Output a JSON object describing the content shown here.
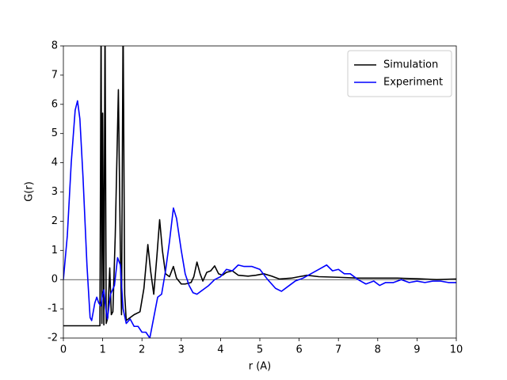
{
  "chart_data": {
    "type": "line",
    "xlabel": "r (A)",
    "ylabel": "G(r)",
    "xlim": [
      0,
      10
    ],
    "ylim": [
      -2,
      8
    ],
    "xticks": [
      0,
      1,
      2,
      3,
      4,
      5,
      6,
      7,
      8,
      9,
      10
    ],
    "yticks": [
      -2,
      -1,
      0,
      1,
      2,
      3,
      4,
      5,
      6,
      7,
      8
    ],
    "hline": 0,
    "legend": "upper right",
    "series": [
      {
        "name": "Simulation",
        "color": "#000000",
        "x": [
          0,
          0.9,
          0.93,
          0.96,
          0.98,
          1.0,
          1.03,
          1.06,
          1.09,
          1.13,
          1.18,
          1.22,
          1.26,
          1.32,
          1.4,
          1.45,
          1.48,
          1.52,
          1.56,
          1.6,
          1.7,
          1.8,
          1.95,
          2.05,
          2.15,
          2.22,
          2.3,
          2.38,
          2.45,
          2.52,
          2.6,
          2.7,
          2.8,
          2.88,
          3.0,
          3.1,
          3.25,
          3.32,
          3.4,
          3.48,
          3.55,
          3.65,
          3.75,
          3.85,
          3.95,
          4.05,
          4.15,
          4.3,
          4.45,
          4.7,
          4.9,
          5.1,
          5.3,
          5.5,
          5.8,
          6.0,
          6.2,
          6.5,
          7.0,
          7.5,
          8.0,
          8.5,
          9.0,
          9.5,
          10.0
        ],
        "values": [
          -1.58,
          -1.58,
          -1.58,
          9,
          -1.5,
          5.7,
          -1.55,
          9,
          -1.5,
          -1.3,
          0.4,
          -1.2,
          -1.1,
          1.5,
          6.5,
          1.0,
          -1.2,
          9,
          -0.5,
          -1.4,
          -1.3,
          -1.2,
          -1.1,
          -0.3,
          1.2,
          0.3,
          -0.5,
          0.8,
          2.05,
          1.0,
          0.2,
          0.1,
          0.45,
          0.05,
          -0.15,
          -0.15,
          -0.1,
          0.1,
          0.6,
          0.2,
          -0.05,
          0.25,
          0.3,
          0.47,
          0.2,
          0.15,
          0.25,
          0.3,
          0.15,
          0.12,
          0.15,
          0.2,
          0.12,
          0.02,
          0.05,
          0.1,
          0.15,
          0.1,
          0.08,
          0.05,
          0.05,
          0.05,
          0.03,
          0.0,
          0.02
        ]
      },
      {
        "name": "Experiment",
        "color": "#0000ff",
        "x": [
          0,
          0.1,
          0.2,
          0.3,
          0.36,
          0.42,
          0.5,
          0.6,
          0.68,
          0.72,
          0.8,
          0.85,
          0.9,
          0.95,
          1.0,
          1.03,
          1.08,
          1.12,
          1.2,
          1.3,
          1.38,
          1.45,
          1.52,
          1.6,
          1.7,
          1.8,
          1.9,
          2.0,
          2.1,
          2.2,
          2.3,
          2.4,
          2.5,
          2.6,
          2.7,
          2.8,
          2.88,
          3.0,
          3.1,
          3.2,
          3.3,
          3.4,
          3.55,
          3.7,
          3.85,
          4.0,
          4.15,
          4.3,
          4.45,
          4.6,
          4.8,
          5.0,
          5.2,
          5.4,
          5.55,
          5.7,
          5.9,
          6.1,
          6.3,
          6.5,
          6.7,
          6.85,
          7.0,
          7.15,
          7.3,
          7.5,
          7.7,
          7.9,
          8.05,
          8.2,
          8.4,
          8.6,
          8.8,
          9.0,
          9.2,
          9.4,
          9.6,
          9.8,
          10.0
        ],
        "values": [
          0.0,
          1.5,
          4.0,
          5.8,
          6.12,
          5.5,
          3.5,
          0.5,
          -1.3,
          -1.4,
          -0.8,
          -0.6,
          -0.8,
          -0.9,
          -0.5,
          -0.35,
          -1.0,
          -1.35,
          -0.5,
          -0.2,
          0.75,
          0.5,
          -1.0,
          -1.5,
          -1.35,
          -1.6,
          -1.6,
          -1.8,
          -1.8,
          -2.0,
          -1.3,
          -0.6,
          -0.5,
          0.3,
          1.3,
          2.45,
          2.1,
          1.0,
          0.2,
          -0.2,
          -0.45,
          -0.5,
          -0.35,
          -0.2,
          0.0,
          0.1,
          0.35,
          0.3,
          0.5,
          0.45,
          0.45,
          0.35,
          0.0,
          -0.3,
          -0.4,
          -0.25,
          -0.05,
          0.05,
          0.2,
          0.35,
          0.5,
          0.3,
          0.35,
          0.2,
          0.2,
          0.0,
          -0.15,
          -0.05,
          -0.2,
          -0.1,
          -0.1,
          0.0,
          -0.1,
          -0.05,
          -0.1,
          -0.05,
          -0.05,
          -0.1,
          -0.1
        ]
      }
    ]
  }
}
